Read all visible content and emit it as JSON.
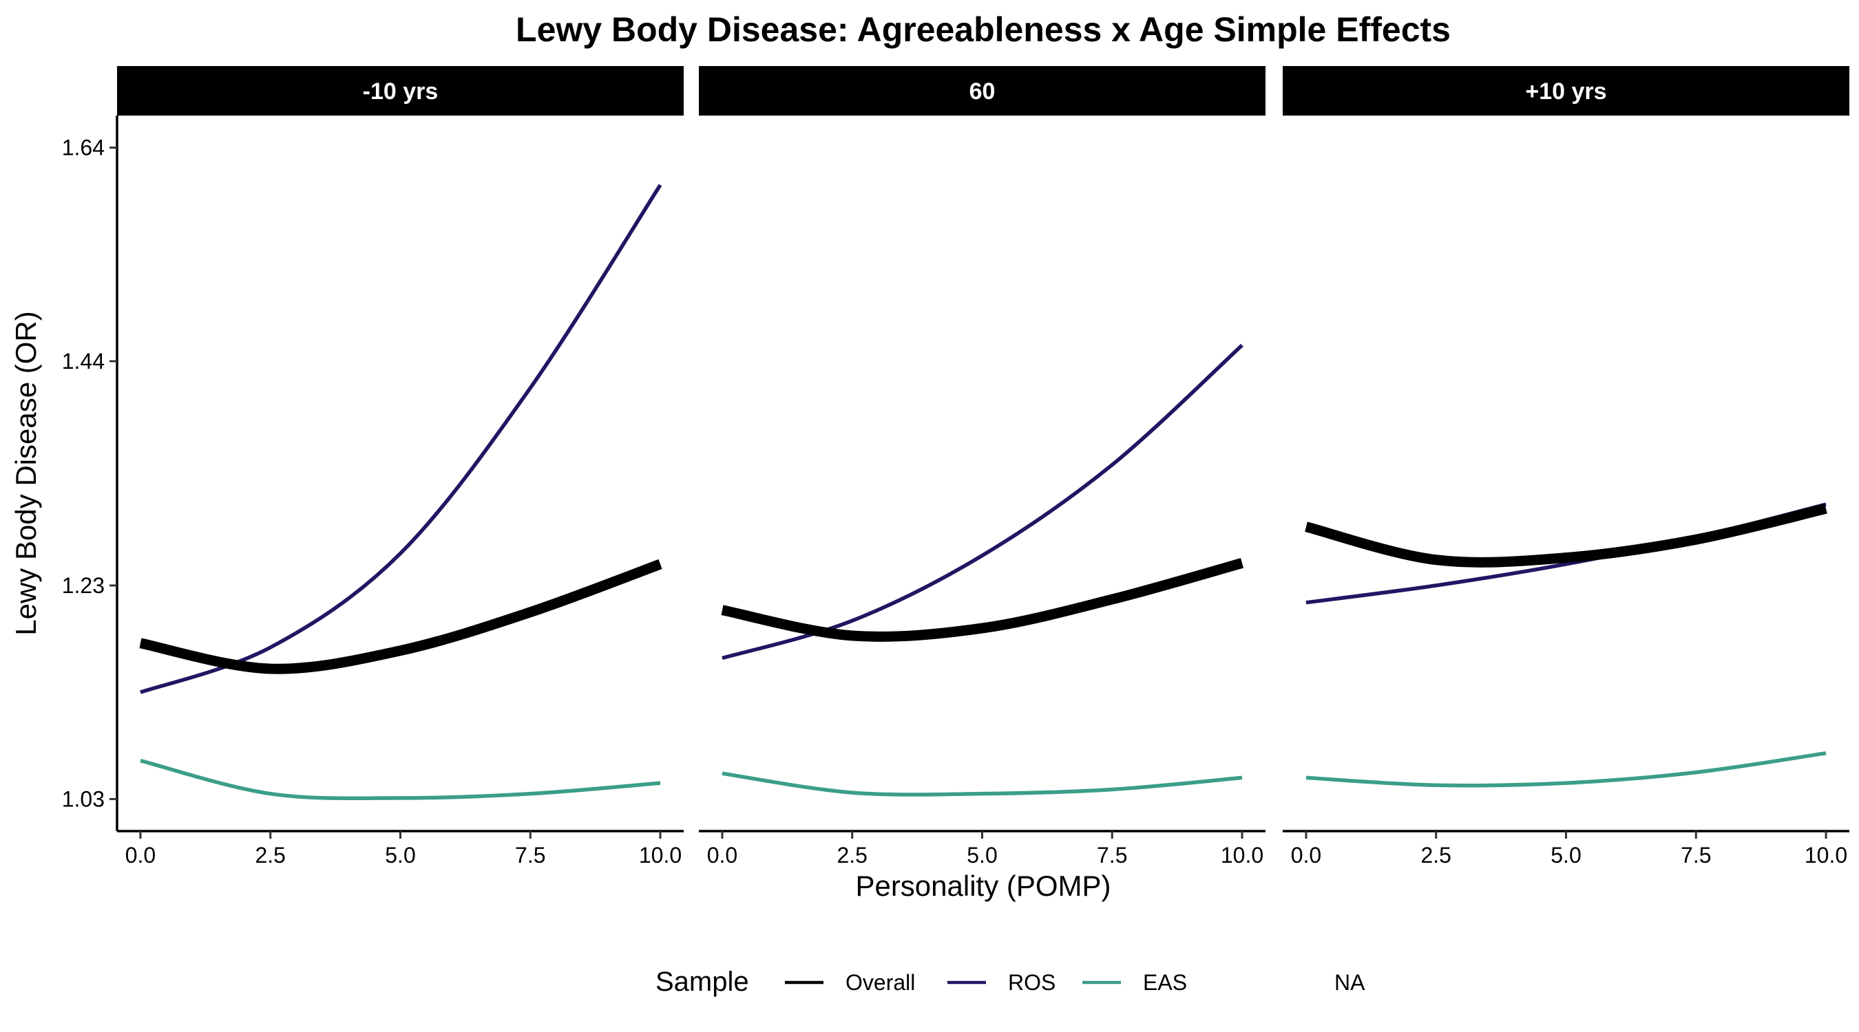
{
  "chart_data": {
    "type": "line",
    "title": "Lewy Body Disease: Agreeableness x Age Simple Effects",
    "xlabel": "Personality (POMP)",
    "ylabel": "Lewy Body Disease (OR)",
    "xlim": [
      -0.45,
      10.45
    ],
    "ylim": [
      1.0,
      1.67
    ],
    "x_ticks": [
      0,
      2.5,
      5,
      7.5,
      10
    ],
    "x_tick_labels": [
      "0.0",
      "2.5",
      "5.0",
      "7.5",
      "10.0"
    ],
    "y_ticks": [
      1.03,
      1.23,
      1.44,
      1.64
    ],
    "y_tick_labels": [
      "1.03",
      "1.23",
      "1.44",
      "1.64"
    ],
    "grid": false,
    "legend": {
      "title": "Sample",
      "placement": "bottom",
      "entries": [
        {
          "label": "Overall",
          "color": "#000000"
        },
        {
          "label": "ROS",
          "color": "#231563"
        },
        {
          "label": "EAS",
          "color": "#3b9e88"
        },
        {
          "label": "NA",
          "color": null
        }
      ]
    },
    "x": [
      0,
      2.5,
      5,
      7.5,
      10
    ],
    "panels": [
      {
        "label": "-10 yrs",
        "series": [
          {
            "name": "EAS",
            "color": "#3b9e88",
            "values": [
              1.066,
              1.035,
              1.031,
              1.035,
              1.045
            ]
          },
          {
            "name": "ROS",
            "color": "#231563",
            "values": [
              1.13,
              1.172,
              1.26,
              1.415,
              1.605
            ]
          },
          {
            "name": "Overall",
            "color": "#000000",
            "values": [
              1.176,
              1.152,
              1.169,
              1.205,
              1.25
            ]
          }
        ]
      },
      {
        "label": "60",
        "series": [
          {
            "name": "EAS",
            "color": "#3b9e88",
            "values": [
              1.054,
              1.036,
              1.035,
              1.039,
              1.05
            ]
          },
          {
            "name": "ROS",
            "color": "#231563",
            "values": [
              1.162,
              1.197,
              1.258,
              1.343,
              1.455
            ]
          },
          {
            "name": "Overall",
            "color": "#000000",
            "values": [
              1.207,
              1.183,
              1.19,
              1.217,
              1.251
            ]
          }
        ]
      },
      {
        "label": "+10 yrs",
        "series": [
          {
            "name": "EAS",
            "color": "#3b9e88",
            "values": [
              1.05,
              1.043,
              1.045,
              1.055,
              1.073
            ]
          },
          {
            "name": "ROS",
            "color": "#231563",
            "values": [
              1.214,
              1.23,
              1.25,
              1.275,
              1.306
            ]
          },
          {
            "name": "Overall",
            "color": "#000000",
            "values": [
              1.285,
              1.254,
              1.256,
              1.273,
              1.302
            ]
          }
        ]
      }
    ]
  }
}
